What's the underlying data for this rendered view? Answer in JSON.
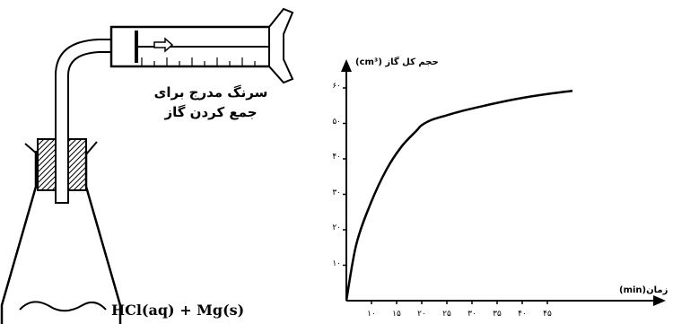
{
  "labels": {
    "syringe_line1": "سرنگ مدرج برای",
    "syringe_line2": "جمع کردن گاز",
    "reaction": "HCl(aq) + Mg(s)",
    "y_axis_title": "حجم کل گاز  (cm³)",
    "x_axis_title": "زمان(min)"
  },
  "chart_data": {
    "type": "line",
    "ylabel": "حجم کل گاز  (cm³)",
    "xlabel": "زمان(min)",
    "x_ticks": [
      "۱۰",
      "۱۵",
      "۲۰",
      "۲۵",
      "۳۰",
      "۳۵",
      "۴۰",
      "۴۵"
    ],
    "x_tick_values": [
      10,
      15,
      20,
      25,
      30,
      35,
      40,
      45
    ],
    "y_ticks": [
      "۱۰",
      "۲۰",
      "۳۰",
      "۴۰",
      "۵۰",
      "۶۰"
    ],
    "y_tick_values": [
      10,
      20,
      30,
      40,
      50,
      60
    ],
    "xlim": [
      5,
      50
    ],
    "ylim": [
      0,
      72
    ],
    "series": [
      {
        "x": [
          5,
          7,
          10,
          13,
          16,
          19,
          20,
          22,
          25,
          28,
          31,
          35,
          40,
          45,
          50
        ],
        "y": [
          0,
          16,
          28,
          37,
          43.5,
          48,
          49.5,
          51,
          52.3,
          53.5,
          54.5,
          55.8,
          57.2,
          58.3,
          59.2
        ]
      }
    ]
  },
  "colors": {
    "ink": "#000000",
    "paper": "#ffffff"
  }
}
